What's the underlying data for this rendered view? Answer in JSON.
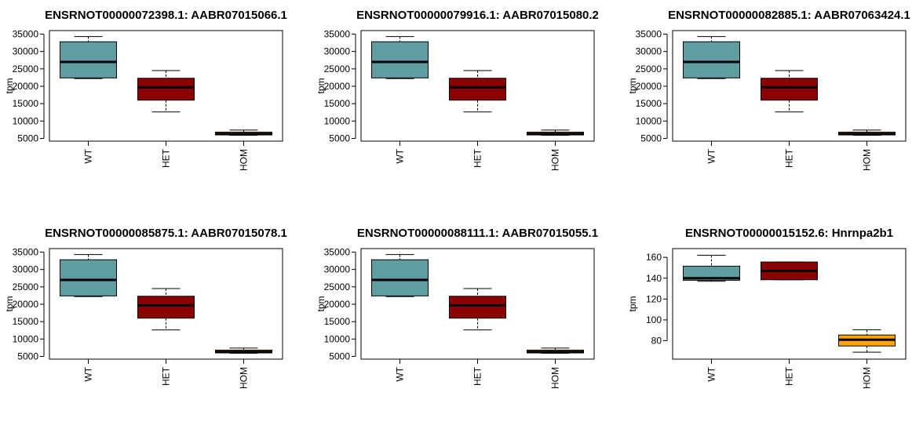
{
  "chart_data": [
    {
      "type": "box",
      "title": "ENSRNOT00000072398.1: AABR07015066.1",
      "ylabel": "tpm",
      "categories": [
        "WT",
        "HET",
        "HOM"
      ],
      "ylim": [
        5000,
        35000
      ],
      "yticks": [
        5000,
        10000,
        15000,
        20000,
        25000,
        30000,
        35000
      ],
      "boxes": [
        {
          "min": 22200,
          "q1": 22400,
          "median": 27000,
          "q3": 32800,
          "max": 34300,
          "color": "#5f9ea0"
        },
        {
          "min": 12600,
          "q1": 16000,
          "median": 19700,
          "q3": 22300,
          "max": 24500,
          "color": "#8b0000"
        },
        {
          "min": 5900,
          "q1": 6000,
          "median": 6300,
          "q3": 6800,
          "max": 7400,
          "color": "#ffa500"
        }
      ]
    },
    {
      "type": "box",
      "title": "ENSRNOT00000079916.1: AABR07015080.2",
      "ylabel": "tpm",
      "categories": [
        "WT",
        "HET",
        "HOM"
      ],
      "ylim": [
        5000,
        35000
      ],
      "yticks": [
        5000,
        10000,
        15000,
        20000,
        25000,
        30000,
        35000
      ],
      "boxes": [
        {
          "min": 22200,
          "q1": 22400,
          "median": 27000,
          "q3": 32800,
          "max": 34300,
          "color": "#5f9ea0"
        },
        {
          "min": 12600,
          "q1": 16000,
          "median": 19700,
          "q3": 22300,
          "max": 24500,
          "color": "#8b0000"
        },
        {
          "min": 5900,
          "q1": 6000,
          "median": 6300,
          "q3": 6800,
          "max": 7400,
          "color": "#ffa500"
        }
      ]
    },
    {
      "type": "box",
      "title": "ENSRNOT00000082885.1: AABR07063424.1",
      "ylabel": "tpm",
      "categories": [
        "WT",
        "HET",
        "HOM"
      ],
      "ylim": [
        5000,
        35000
      ],
      "yticks": [
        5000,
        10000,
        15000,
        20000,
        25000,
        30000,
        35000
      ],
      "boxes": [
        {
          "min": 22200,
          "q1": 22400,
          "median": 27000,
          "q3": 32800,
          "max": 34300,
          "color": "#5f9ea0"
        },
        {
          "min": 12600,
          "q1": 16000,
          "median": 19700,
          "q3": 22300,
          "max": 24500,
          "color": "#8b0000"
        },
        {
          "min": 5900,
          "q1": 6000,
          "median": 6300,
          "q3": 6800,
          "max": 7400,
          "color": "#ffa500"
        }
      ]
    },
    {
      "type": "box",
      "title": "ENSRNOT00000085875.1: AABR07015078.1",
      "ylabel": "tpm",
      "categories": [
        "WT",
        "HET",
        "HOM"
      ],
      "ylim": [
        5000,
        35000
      ],
      "yticks": [
        5000,
        10000,
        15000,
        20000,
        25000,
        30000,
        35000
      ],
      "boxes": [
        {
          "min": 22200,
          "q1": 22400,
          "median": 27000,
          "q3": 32800,
          "max": 34300,
          "color": "#5f9ea0"
        },
        {
          "min": 12600,
          "q1": 16000,
          "median": 19700,
          "q3": 22300,
          "max": 24500,
          "color": "#8b0000"
        },
        {
          "min": 5900,
          "q1": 6000,
          "median": 6300,
          "q3": 6800,
          "max": 7400,
          "color": "#ffa500"
        }
      ]
    },
    {
      "type": "box",
      "title": "ENSRNOT00000088111.1: AABR07015055.1",
      "ylabel": "tpm",
      "categories": [
        "WT",
        "HET",
        "HOM"
      ],
      "ylim": [
        5000,
        35000
      ],
      "yticks": [
        5000,
        10000,
        15000,
        20000,
        25000,
        30000,
        35000
      ],
      "boxes": [
        {
          "min": 22200,
          "q1": 22400,
          "median": 27000,
          "q3": 32800,
          "max": 34300,
          "color": "#5f9ea0"
        },
        {
          "min": 12600,
          "q1": 16000,
          "median": 19700,
          "q3": 22300,
          "max": 24500,
          "color": "#8b0000"
        },
        {
          "min": 5900,
          "q1": 6000,
          "median": 6300,
          "q3": 6800,
          "max": 7400,
          "color": "#ffa500"
        }
      ]
    },
    {
      "type": "box",
      "title": "ENSRNOT00000015152.6: Hnrnpa2b1",
      "ylabel": "tpm",
      "categories": [
        "WT",
        "HET",
        "HOM"
      ],
      "ylim": [
        65,
        165
      ],
      "yticks": [
        80,
        100,
        120,
        140,
        160
      ],
      "boxes": [
        {
          "min": 137,
          "q1": 138,
          "median": 140,
          "q3": 151.5,
          "max": 162,
          "color": "#5f9ea0"
        },
        {
          "min": 138.5,
          "q1": 138.5,
          "median": 147,
          "q3": 155.5,
          "max": 155.5,
          "color": "#8b0000"
        },
        {
          "min": 69,
          "q1": 75,
          "median": 81,
          "q3": 85.5,
          "max": 90.5,
          "color": "#ffa500"
        }
      ]
    }
  ]
}
